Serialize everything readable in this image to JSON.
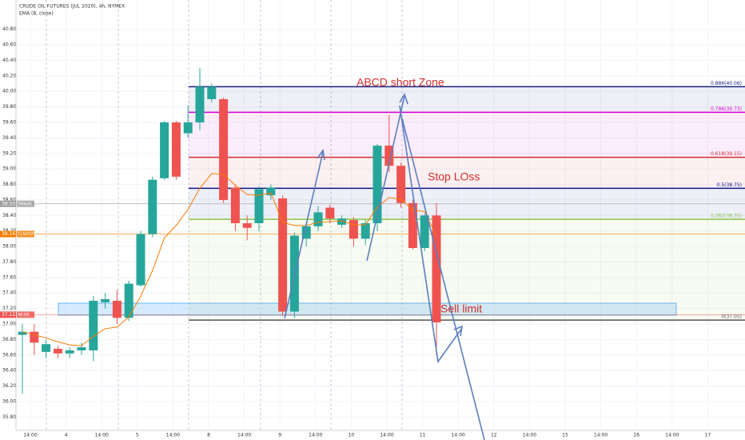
{
  "chart_data": {
    "type": "candlestick",
    "title": "CRUDE OIL FUTURES (JUL 2020), 4h, NYMEX",
    "indicator": "EMA (8, close)",
    "up_color": "#26a69a",
    "down_color": "#ef5350",
    "ema_color": "#f57c00",
    "ylim": [
      35.7,
      40.9
    ],
    "yticks": [
      {
        "value": 35.8,
        "label": "35.80"
      },
      {
        "value": 36,
        "label": "36.00"
      },
      {
        "value": 36.2,
        "label": "36.20"
      },
      {
        "value": 36.4,
        "label": "36.40"
      },
      {
        "value": 36.6,
        "label": "36.60"
      },
      {
        "value": 36.8,
        "label": "36.80"
      },
      {
        "value": 37,
        "label": "37.00"
      },
      {
        "value": 37.2,
        "label": "37.20"
      },
      {
        "value": 37.4,
        "label": "37.40"
      },
      {
        "value": 37.6,
        "label": "37.60"
      },
      {
        "value": 37.8,
        "label": "37.80"
      },
      {
        "value": 38,
        "label": "38.00"
      },
      {
        "value": 38.2,
        "label": "38.20"
      },
      {
        "value": 38.4,
        "label": "38.40"
      },
      {
        "value": 38.6,
        "label": "38.60"
      },
      {
        "value": 38.8,
        "label": "38.80"
      },
      {
        "value": 39,
        "label": "39.00"
      },
      {
        "value": 39.2,
        "label": "39.20"
      },
      {
        "value": 39.4,
        "label": "39.40"
      },
      {
        "value": 39.6,
        "label": "39.60"
      },
      {
        "value": 39.8,
        "label": "39.80"
      },
      {
        "value": 40,
        "label": "40.00"
      },
      {
        "value": 40.2,
        "label": "40.20"
      },
      {
        "value": 40.4,
        "label": "40.40"
      },
      {
        "value": 40.6,
        "label": "40.60"
      },
      {
        "value": 40.8,
        "label": "40.80"
      }
    ],
    "x_labels": [
      "14:00",
      "4",
      "14:00",
      "5",
      "14:00",
      "8",
      "14:00",
      "9",
      "14:00",
      "10",
      "14:00",
      "11",
      "14:00",
      "12",
      "14:00",
      "15",
      "14:00",
      "16",
      "14:00",
      "17"
    ],
    "open": [
      36.86,
      36.9,
      36.64,
      36.68,
      36.62,
      36.66,
      36.66,
      37.28,
      37.3,
      37.08,
      37.5,
      38.16,
      38.88,
      39.6,
      39.46,
      39.6,
      39.9,
      39.9,
      38.76,
      38.3,
      38.3,
      38.66,
      38.62,
      37.16,
      38.1,
      38.26,
      38.5,
      38.28,
      38.34,
      38.1,
      38.3,
      39.3,
      39.04,
      38.56,
      37.98,
      38.4
    ],
    "close": [
      36.9,
      36.76,
      36.74,
      36.62,
      36.66,
      36.7,
      37.3,
      37.32,
      37.08,
      37.52,
      38.16,
      38.86,
      39.6,
      38.9,
      39.6,
      40.06,
      40.06,
      38.6,
      38.3,
      38.24,
      38.74,
      38.76,
      37.16,
      38.14,
      38.26,
      38.44,
      38.36,
      38.36,
      38.1,
      38.3,
      39.3,
      39.04,
      38.56,
      37.98,
      38.4,
      37.02
    ],
    "high": [
      37.0,
      37.0,
      36.8,
      36.72,
      36.7,
      36.76,
      37.36,
      37.4,
      37.44,
      37.56,
      38.2,
      38.9,
      39.62,
      39.62,
      39.82,
      40.3,
      40.1,
      39.92,
      38.8,
      38.4,
      38.78,
      38.8,
      38.66,
      38.18,
      38.3,
      38.52,
      38.54,
      38.4,
      38.38,
      38.34,
      39.32,
      39.7,
      39.08,
      38.6,
      38.42,
      38.56
    ],
    "low": [
      36.1,
      36.6,
      36.56,
      36.56,
      36.56,
      36.6,
      36.52,
      37.2,
      37.0,
      37.04,
      37.48,
      38.12,
      38.86,
      38.86,
      39.4,
      39.5,
      39.86,
      38.56,
      38.2,
      38.08,
      38.2,
      38.6,
      37.1,
      37.08,
      38.0,
      38.2,
      38.3,
      38.24,
      38.0,
      38.02,
      38.2,
      38.96,
      38.5,
      37.96,
      37.94,
      36.6
    ],
    "ema": [
      36.9,
      36.86,
      36.82,
      36.77,
      36.73,
      36.72,
      36.84,
      36.94,
      36.96,
      37.09,
      37.36,
      37.69,
      38.11,
      38.27,
      38.48,
      38.75,
      38.94,
      38.93,
      38.79,
      38.67,
      38.66,
      38.69,
      38.31,
      38.27,
      38.27,
      38.31,
      38.32,
      38.33,
      38.28,
      38.28,
      38.51,
      38.63,
      38.61,
      38.47,
      38.45,
      38.13
    ],
    "fib_levels": [
      {
        "value": 40.06,
        "label": "0.886(40.06)",
        "color": "#1a237e"
      },
      {
        "value": 39.73,
        "label": "0.786(39.73)",
        "color": "#d500d5"
      },
      {
        "value": 39.15,
        "label": "0.618(39.15)",
        "color": "#d32f2f"
      },
      {
        "value": 38.75,
        "label": "0.5(38.75)",
        "color": "#0d1a8c"
      },
      {
        "value": 38.35,
        "label": "0.382(38.35)",
        "color": "#8bc34a"
      },
      {
        "value": 37.05,
        "label": "0(37.05)",
        "color": "#555555"
      }
    ],
    "price_tags": [
      {
        "value": 38.55,
        "label": "38.55",
        "color": "#9e9e9e"
      },
      {
        "value": 38.16,
        "label": "38.16",
        "color": "#f57c00"
      },
      {
        "value": 37.12,
        "label": "37.12",
        "color": "#ef5350"
      }
    ],
    "tag_notes": [
      "EMA(8)",
      "CLN2020",
      "48:00"
    ],
    "annotations": [
      "ABCD short Zone",
      "Stop LOss",
      "Sell limit"
    ]
  }
}
